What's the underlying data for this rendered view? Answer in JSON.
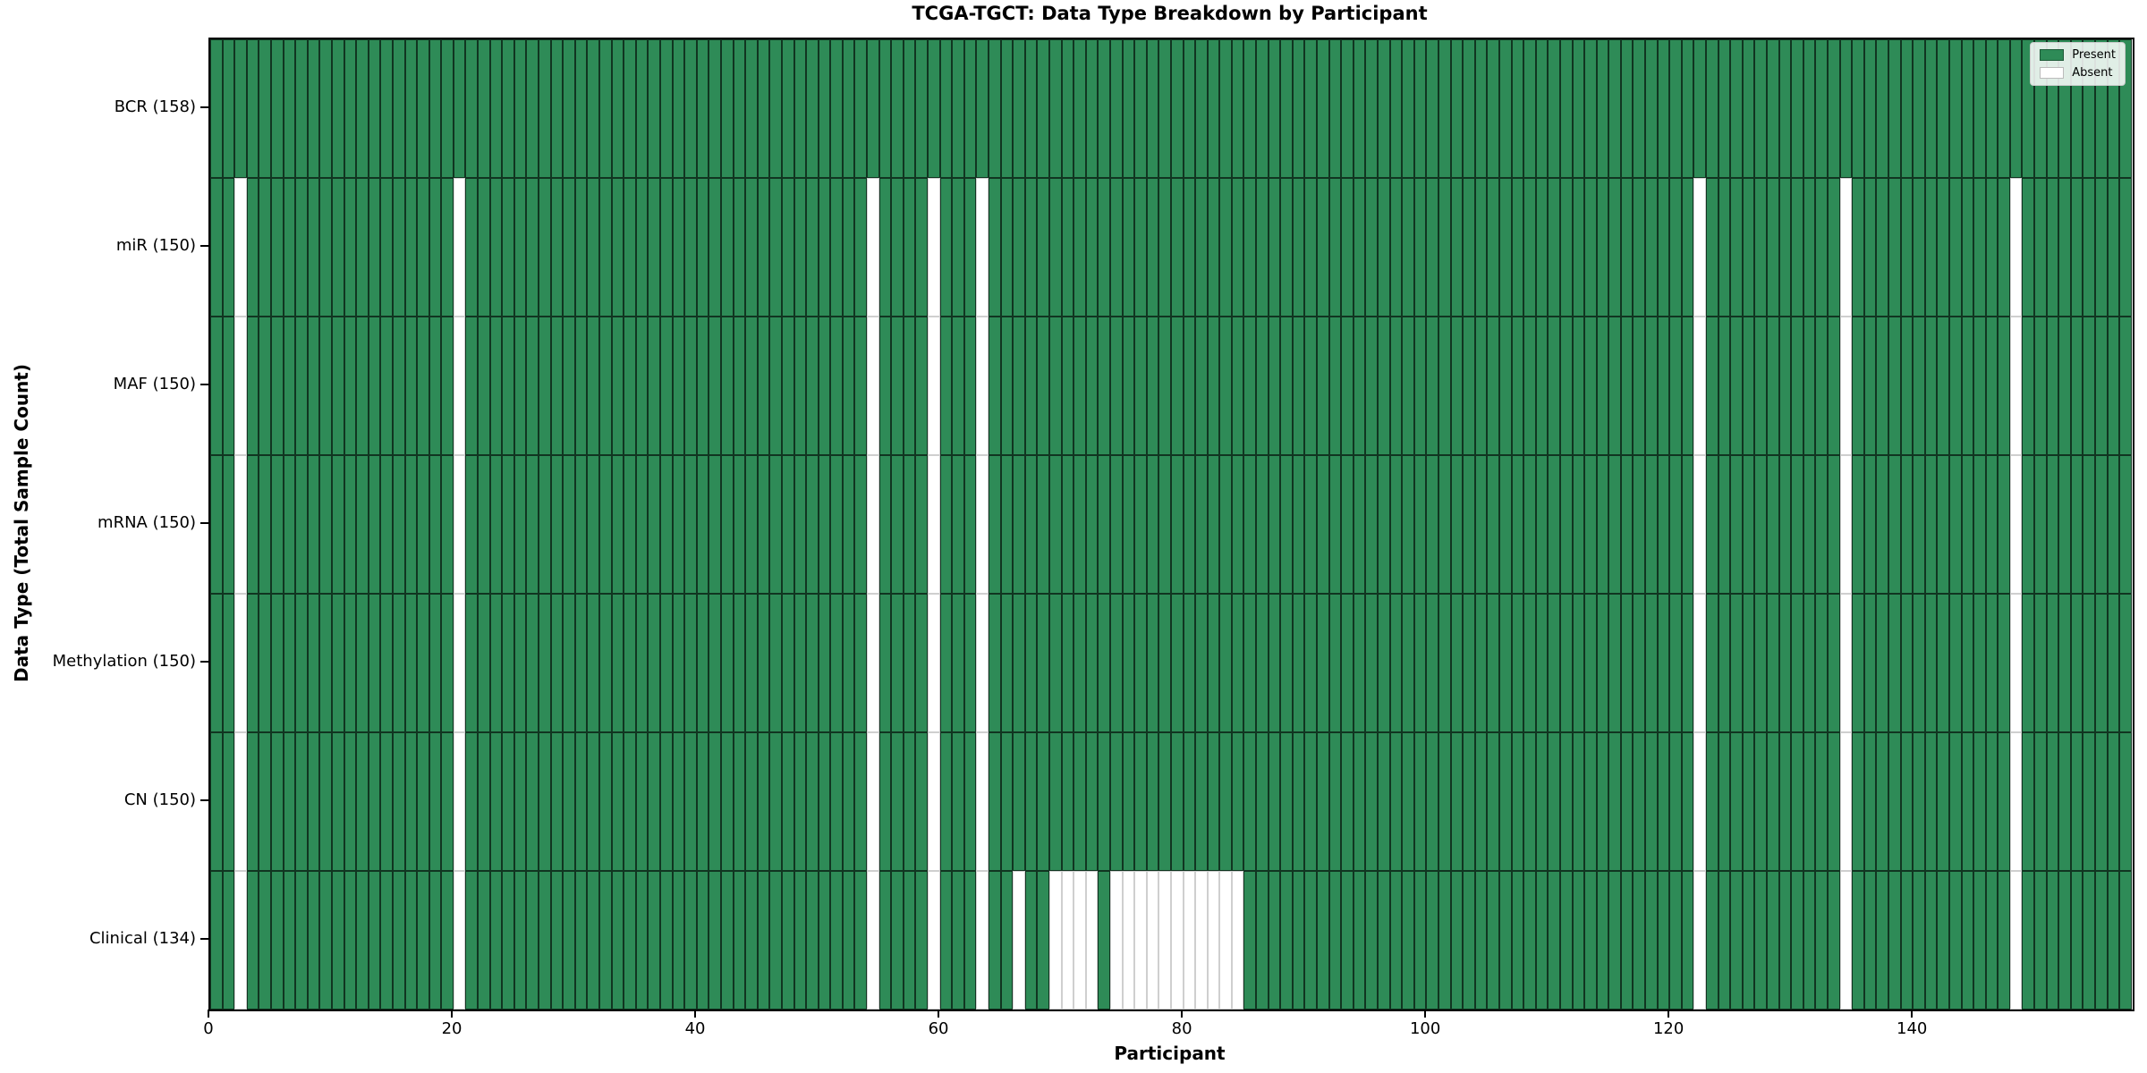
{
  "figure": {
    "background": "#ffffff"
  },
  "chart_data": {
    "type": "heatmap",
    "title": "TCGA-TGCT: Data Type Breakdown by Participant",
    "xlabel": "Participant",
    "ylabel": "Data Type (Total Sample Count)",
    "n_participants": 158,
    "x_ticks": [
      0,
      20,
      40,
      60,
      80,
      100,
      120,
      140
    ],
    "x_range": [
      0,
      158
    ],
    "grid": false,
    "legend_position": "upper right",
    "legend": [
      {
        "label": "Present",
        "color": "#2e8b57"
      },
      {
        "label": "Absent",
        "color": "#ffffff"
      }
    ],
    "colors": {
      "present_fill": "#2e8b57",
      "absent_fill": "#ffffff",
      "present_edge": "rgba(0,0,0,0.62)",
      "absent_edge": "#cfcfcf"
    },
    "rows": [
      {
        "label": "BCR (158)",
        "name": "BCR",
        "total": 158,
        "absent": []
      },
      {
        "label": "miR (150)",
        "name": "miR",
        "total": 150,
        "absent": [
          2,
          20,
          54,
          59,
          63,
          122,
          134,
          148
        ]
      },
      {
        "label": "MAF (150)",
        "name": "MAF",
        "total": 150,
        "absent": [
          2,
          20,
          54,
          59,
          63,
          122,
          134,
          148
        ]
      },
      {
        "label": "mRNA (150)",
        "name": "mRNA",
        "total": 150,
        "absent": [
          2,
          20,
          54,
          59,
          63,
          122,
          134,
          148
        ]
      },
      {
        "label": "Methylation (150)",
        "name": "Methylation",
        "total": 150,
        "absent": [
          2,
          20,
          54,
          59,
          63,
          122,
          134,
          148
        ]
      },
      {
        "label": "CN (150)",
        "name": "CN",
        "total": 150,
        "absent": [
          2,
          20,
          54,
          59,
          63,
          122,
          134,
          148
        ]
      },
      {
        "label": "Clinical (134)",
        "name": "Clinical",
        "total": 134,
        "absent": [
          2,
          20,
          54,
          59,
          63,
          66,
          69,
          70,
          71,
          72,
          74,
          75,
          76,
          77,
          78,
          79,
          80,
          81,
          82,
          83,
          84,
          122,
          134,
          148
        ]
      }
    ]
  }
}
